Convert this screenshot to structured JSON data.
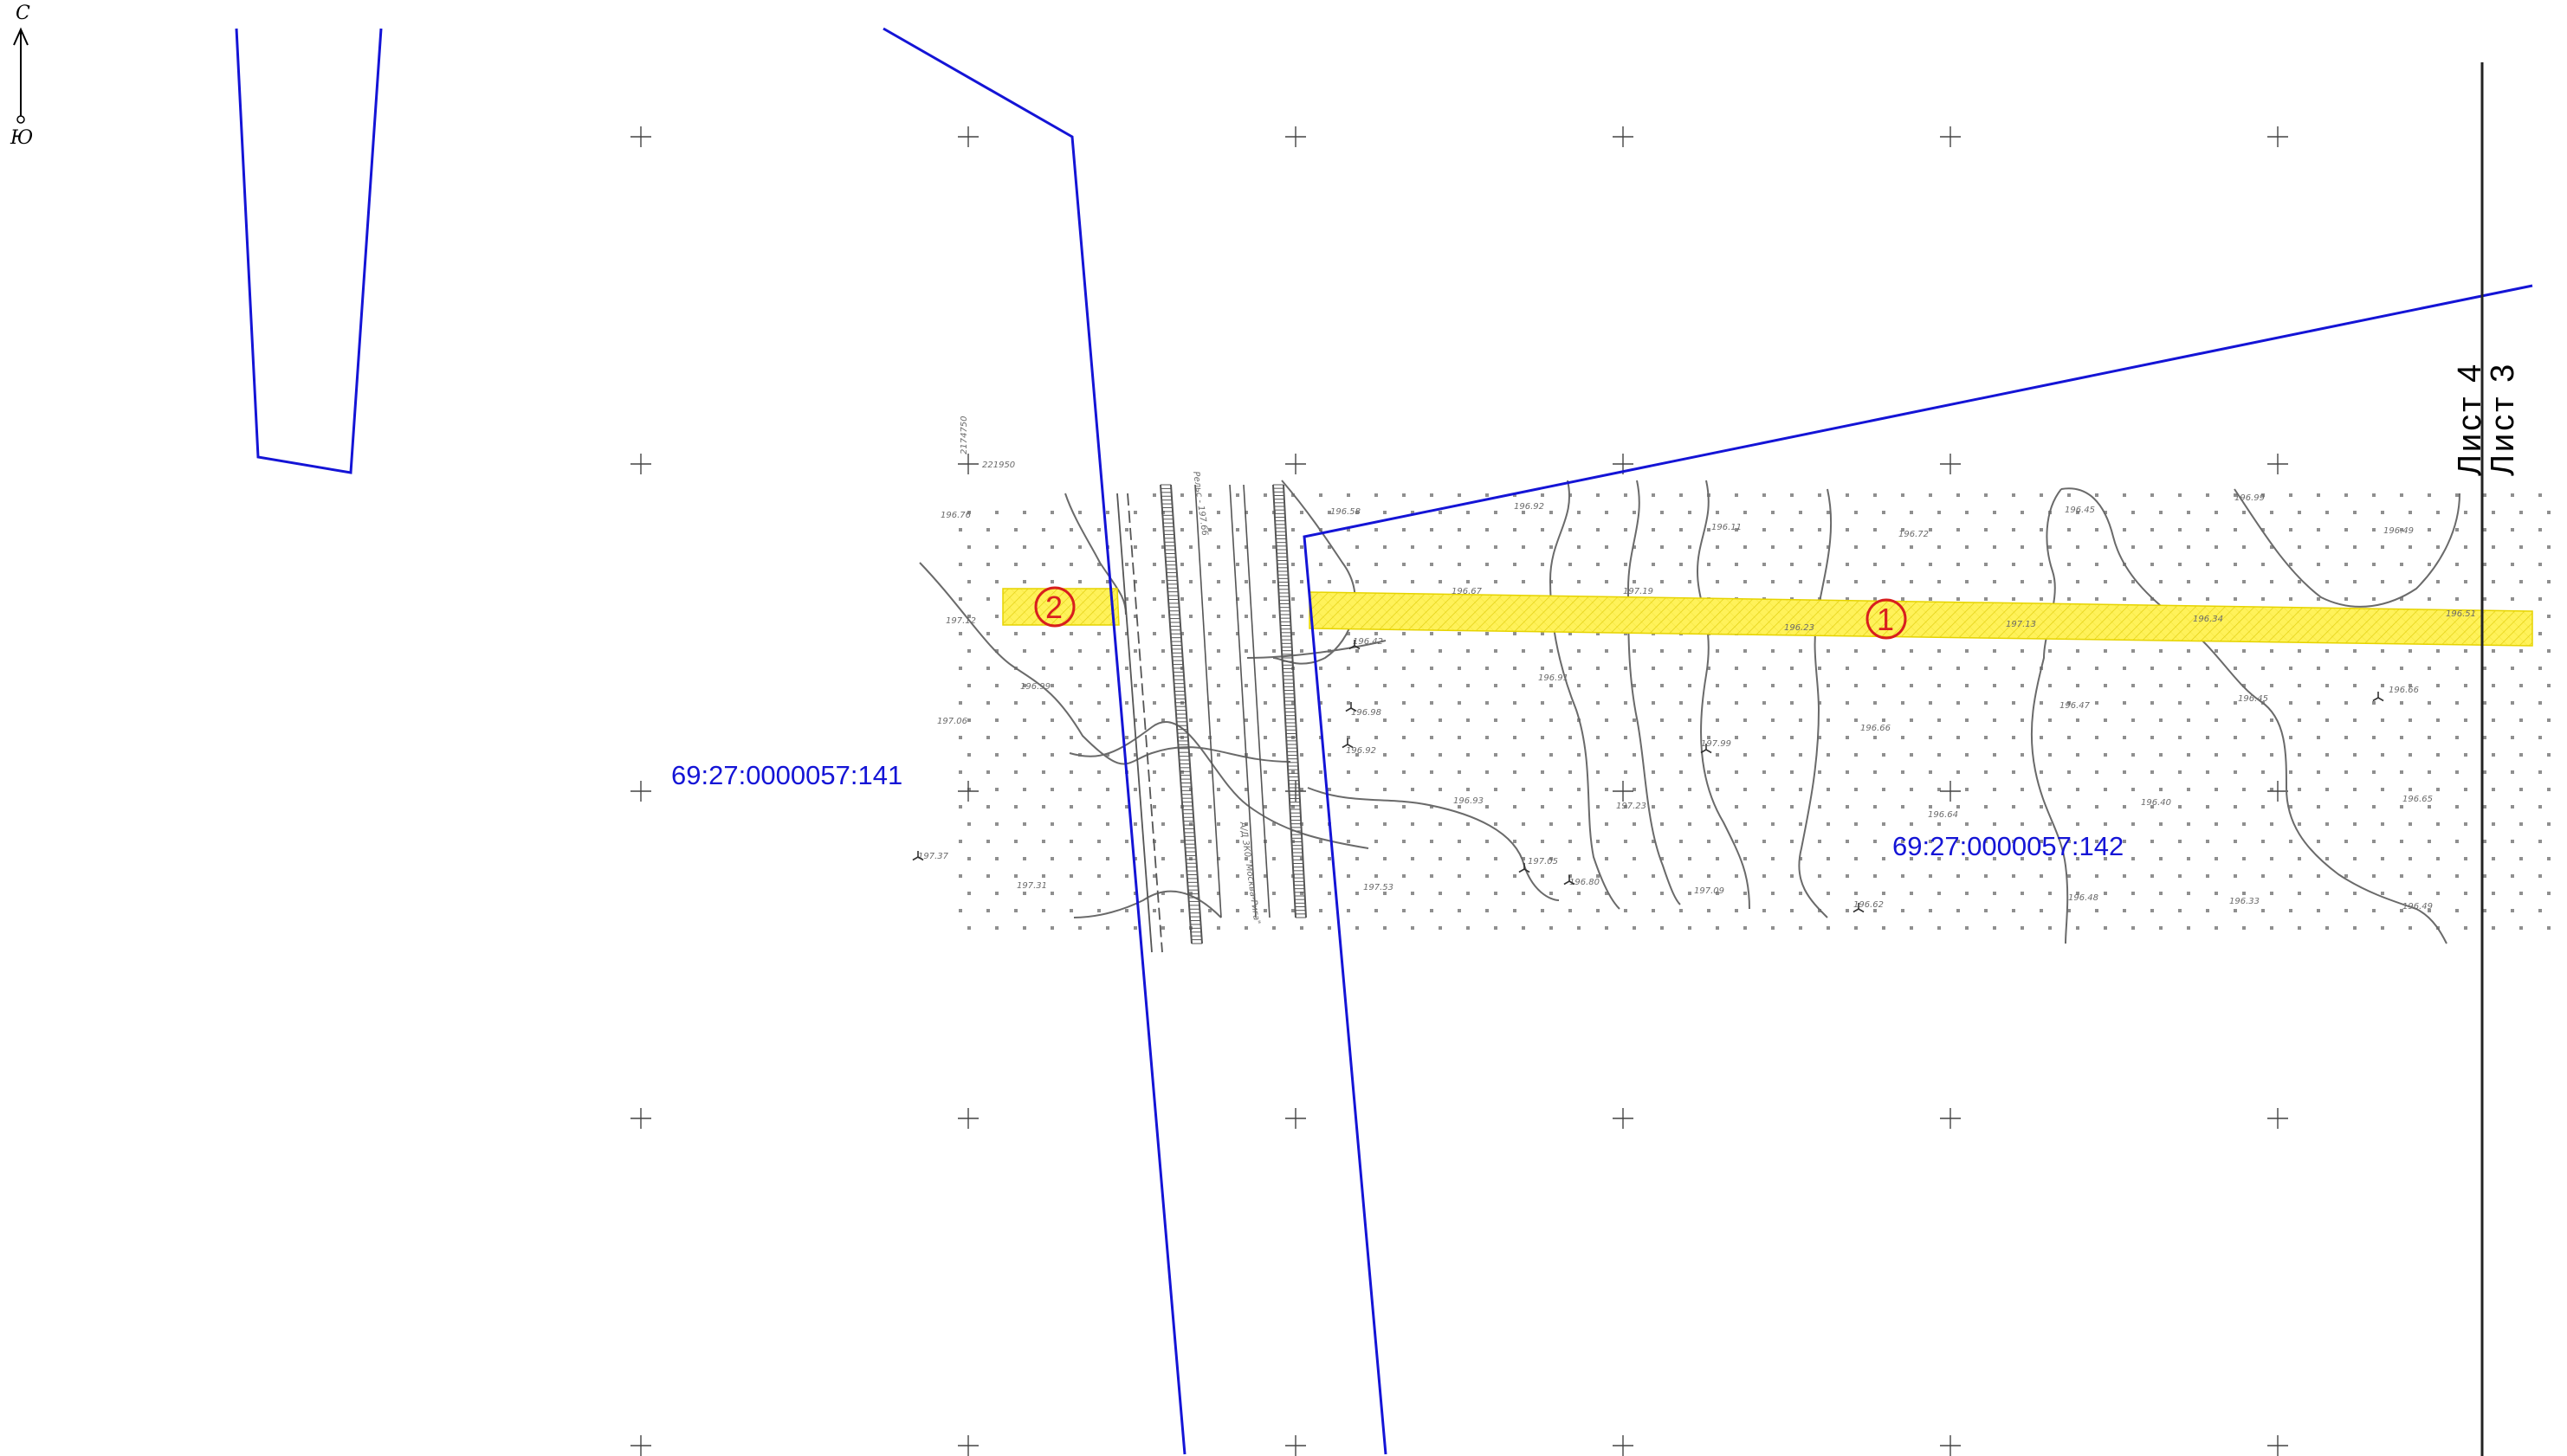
{
  "north_arrow": {
    "north_label": "С",
    "south_label": "Ю"
  },
  "parcels": [
    {
      "id": "parcel-141",
      "label": "69:27:0000057:141"
    },
    {
      "id": "parcel-142",
      "label": "69:27:0000057:142"
    }
  ],
  "zones": [
    {
      "id": "zone-1",
      "number": "1"
    },
    {
      "id": "zone-2",
      "number": "2"
    }
  ],
  "sheets": [
    {
      "id": "sheet-4",
      "label": "Лист 4"
    },
    {
      "id": "sheet-3",
      "label": "Лист 3"
    }
  ],
  "railway_labels": {
    "road_name": "А/Д 3К0 \"Москва-Рига\"",
    "rails": "Рельс - 197.66"
  },
  "grid_labels": [
    "2174750",
    "221950"
  ],
  "elevations": [
    "196.76",
    "197.12",
    "197.06",
    "196.99",
    "197.37",
    "197.31",
    "196.58",
    "196.92",
    "196.67",
    "196.42",
    "196.98",
    "196.92",
    "196.93",
    "197.05",
    "196.80",
    "197.53",
    "196.11",
    "197.19",
    "196.91",
    "197.23",
    "197.99",
    "197.09",
    "196.72",
    "196.23",
    "196.66",
    "196.64",
    "196.62",
    "196.45",
    "197.13",
    "196.47",
    "196.40",
    "196.48",
    "196.99",
    "196.49",
    "196.34",
    "196.45",
    "196.33",
    "196.66",
    "196.65",
    "196.49",
    "196.51"
  ],
  "colors": {
    "boundary": "#1414d6",
    "zone_fill": "#fff25a",
    "zone_stroke": "#e6d400",
    "marker": "#d81e1e",
    "contour": "#6a6a6a",
    "survey_points": "#8f8f8f"
  }
}
